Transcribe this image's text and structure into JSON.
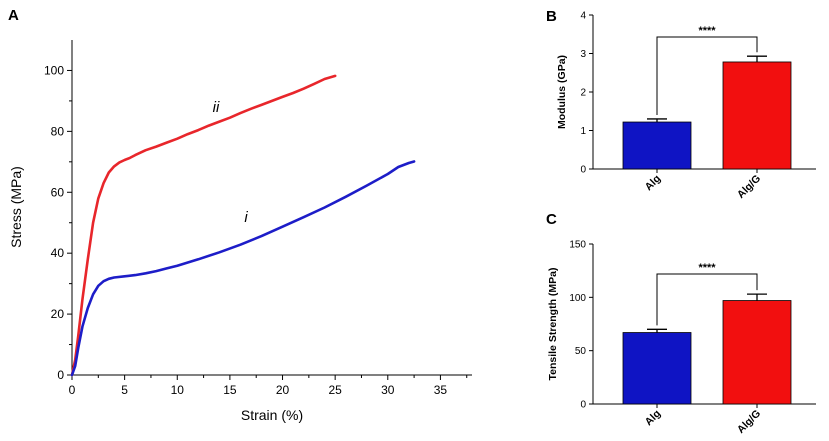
{
  "chart_data": [
    {
      "panel": "A",
      "type": "line",
      "xlabel": "Strain (%)",
      "ylabel": "Stress (MPa)",
      "xlim": [
        0,
        38
      ],
      "ylim": [
        0,
        110
      ],
      "xticks": [
        0,
        5,
        10,
        15,
        20,
        25,
        30,
        35
      ],
      "yticks": [
        0,
        20,
        40,
        60,
        80,
        100
      ],
      "series": [
        {
          "name": "ii",
          "color": "#e8262b",
          "x": [
            0,
            0.3,
            0.6,
            1.0,
            1.5,
            2.0,
            2.5,
            3.0,
            3.5,
            4.0,
            4.5,
            5.0,
            5.5,
            6,
            7,
            8,
            9,
            10,
            11,
            12,
            13,
            14,
            15,
            16,
            17,
            18,
            19,
            20,
            21,
            22,
            23,
            24,
            25
          ],
          "y": [
            0,
            5,
            13,
            25,
            38,
            50,
            58,
            63,
            66.5,
            68.5,
            69.8,
            70.6,
            71.3,
            72.2,
            73.8,
            75.0,
            76.3,
            77.6,
            79.1,
            80.4,
            81.9,
            83.2,
            84.5,
            86.0,
            87.4,
            88.7,
            90.0,
            91.3,
            92.6,
            94.0,
            95.6,
            97.2,
            98.2
          ]
        },
        {
          "name": "i",
          "color": "#1d1dc8",
          "x": [
            0,
            0.3,
            0.6,
            1.0,
            1.5,
            2.0,
            2.5,
            3.0,
            3.5,
            4,
            5,
            6,
            7,
            8,
            9,
            10,
            12,
            14,
            16,
            18,
            20,
            22,
            24,
            26,
            28,
            30,
            31,
            32,
            32.5
          ],
          "y": [
            0,
            3,
            9,
            16,
            22,
            26.5,
            29.3,
            30.8,
            31.6,
            32.0,
            32.4,
            32.8,
            33.4,
            34.1,
            35.0,
            35.9,
            38.0,
            40.3,
            42.8,
            45.6,
            48.7,
            51.8,
            55.0,
            58.5,
            62.2,
            66.0,
            68.3,
            69.6,
            70.1
          ]
        }
      ]
    },
    {
      "panel": "B",
      "type": "bar",
      "ylabel": "Modulus (GPa)",
      "categories": [
        "Alg",
        "Alg/G"
      ],
      "values": [
        1.22,
        2.78
      ],
      "errors": [
        0.08,
        0.15
      ],
      "colors": [
        "#0f14c4",
        "#f20f0f"
      ],
      "ylim": [
        0,
        4
      ],
      "yticks": [
        0,
        1,
        2,
        3,
        4
      ],
      "significance": "****"
    },
    {
      "panel": "C",
      "type": "bar",
      "ylabel": "Tensile Strength (MPa)",
      "categories": [
        "Alg",
        "Alg/G"
      ],
      "values": [
        67,
        97
      ],
      "errors": [
        3,
        6
      ],
      "colors": [
        "#0f14c4",
        "#f20f0f"
      ],
      "ylim": [
        0,
        150
      ],
      "yticks": [
        0,
        50,
        100,
        150
      ],
      "significance": "****"
    }
  ]
}
